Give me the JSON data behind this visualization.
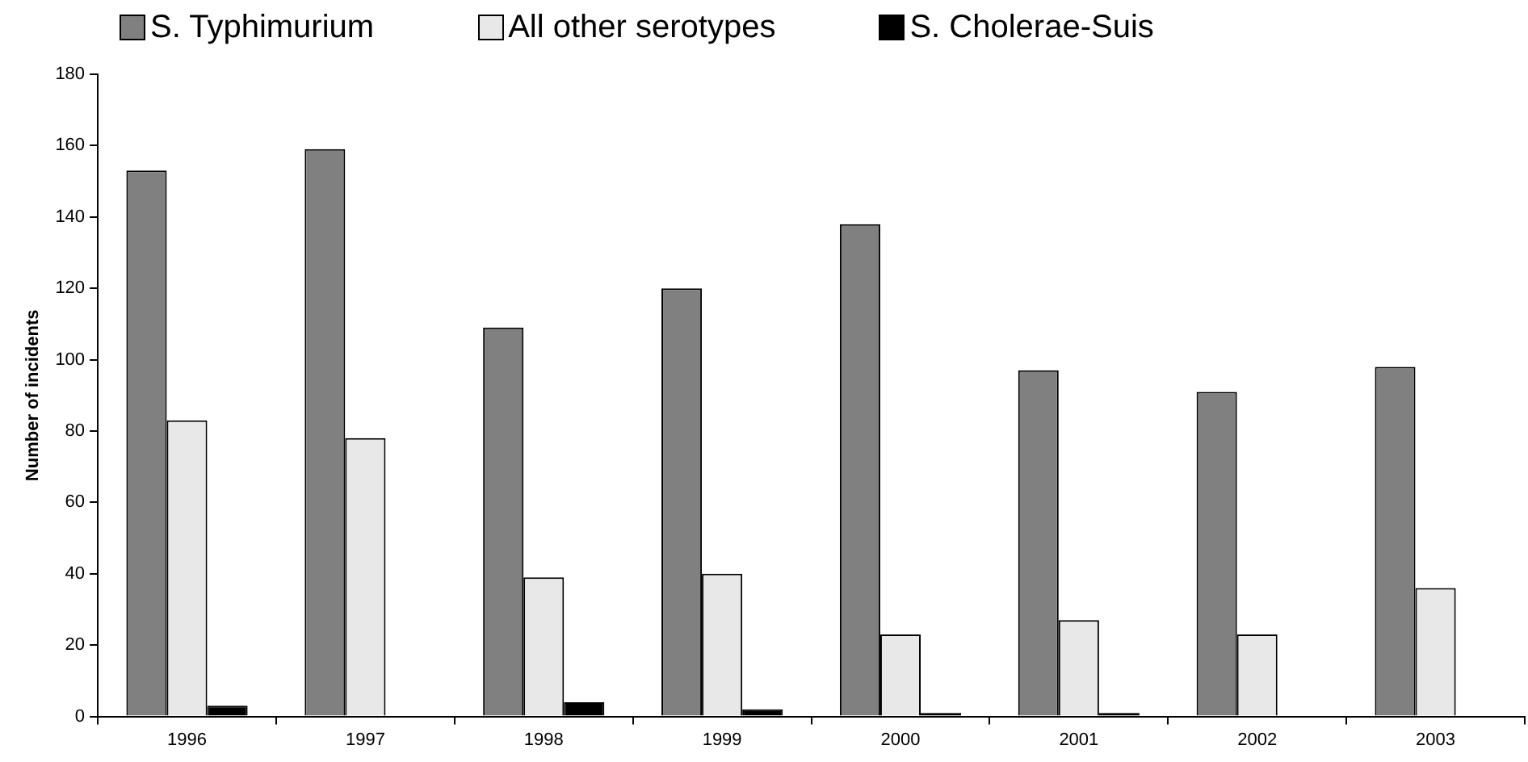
{
  "chart_data": {
    "type": "bar",
    "ylabel": "Number of incidents",
    "categories": [
      "1996",
      "1997",
      "1998",
      "1999",
      "2000",
      "2001",
      "2002",
      "2003"
    ],
    "series": [
      {
        "name": "S. Typhimurium",
        "color": "#808080",
        "values": [
          153,
          159,
          109,
          120,
          138,
          97,
          91,
          98
        ]
      },
      {
        "name": "All other serotypes",
        "color": "#e8e8e8",
        "values": [
          83,
          78,
          39,
          40,
          23,
          27,
          23,
          36
        ]
      },
      {
        "name": "S. Cholerae-Suis",
        "color": "#000000",
        "values": [
          3,
          0,
          4,
          2,
          1,
          1,
          0,
          0
        ]
      }
    ],
    "ylim": [
      0,
      180
    ],
    "yticks": [
      0,
      20,
      40,
      60,
      80,
      100,
      120,
      140,
      160,
      180
    ],
    "grid": false,
    "legend": "top"
  }
}
